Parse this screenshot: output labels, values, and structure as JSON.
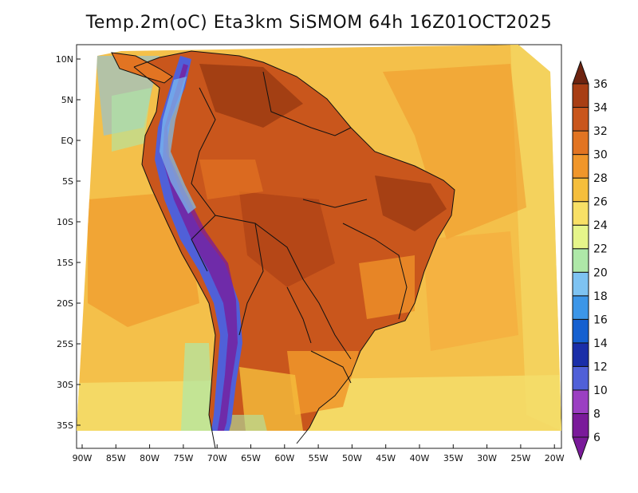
{
  "title": "Temp.2m(oC) Eta3km SiSMOM 64h 16Z01OCT2025",
  "lat_labels": [
    "10N",
    "5N",
    "EQ",
    "5S",
    "10S",
    "15S",
    "20S",
    "25S",
    "30S",
    "35S"
  ],
  "lon_labels": [
    "90W",
    "85W",
    "80W",
    "75W",
    "70W",
    "65W",
    "60W",
    "55W",
    "50W",
    "45W",
    "40W",
    "35W",
    "30W",
    "25W",
    "20W"
  ],
  "colorbar": {
    "labels": [
      "6",
      "8",
      "10",
      "12",
      "14",
      "16",
      "18",
      "20",
      "22",
      "24",
      "26",
      "28",
      "30",
      "32",
      "34",
      "36"
    ],
    "colors": [
      "#7a1a9a",
      "#9b3fc2",
      "#5060d8",
      "#1a2ea8",
      "#1560d0",
      "#3c96e8",
      "#7ec3f2",
      "#aee8a8",
      "#e6f58a",
      "#f8e066",
      "#f5be3c",
      "#f0962a",
      "#e27422",
      "#c9561c",
      "#a83e14",
      "#6e2410"
    ]
  },
  "colors": {
    "ocean_warm": "#f5a63a",
    "ocean_mid": "#f4c04a",
    "ocean_cool": "#f3dd6a",
    "land_hot": "#c9561c",
    "land_very_hot": "#9a3a12",
    "andes": "#4a3ad0",
    "borders": "#111111"
  }
}
